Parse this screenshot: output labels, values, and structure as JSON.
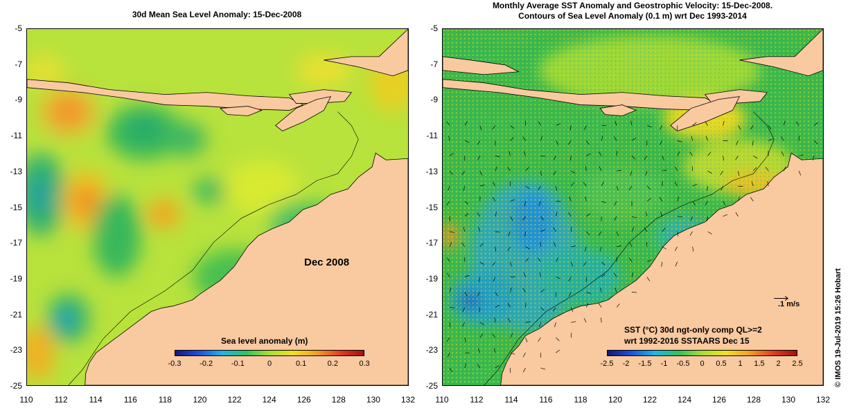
{
  "left_panel": {
    "title": "30d Mean Sea Level Anomaly: 15-Dec-2008",
    "y_ticks": [
      "-5",
      "-7",
      "-9",
      "-11",
      "-13",
      "-15",
      "-17",
      "-19",
      "-21",
      "-23",
      "-25"
    ],
    "x_ticks": [
      "110",
      "112",
      "114",
      "116",
      "118",
      "120",
      "122",
      "124",
      "126",
      "128",
      "130",
      "132"
    ],
    "month_label": "Dec 2008",
    "colorbar": {
      "label": "Sea level anomaly (m)",
      "ticks": [
        "-0.3",
        "-0.2",
        "-0.1",
        "0",
        "0.1",
        "0.2",
        "0.3"
      ]
    }
  },
  "right_panel": {
    "title_line1": "Monthly Average SST Anomaly  and Geostrophic Velocity: 15-Dec-2008.",
    "title_line2": "Contours of Sea Level Anomaly (0.1 m) wrt Dec 1993-2014",
    "y_ticks": [
      "-5",
      "-7",
      "-9",
      "-11",
      "-13",
      "-15",
      "-17",
      "-19",
      "-21",
      "-23",
      "-25"
    ],
    "x_ticks": [
      "110",
      "112",
      "114",
      "116",
      "118",
      "120",
      "122",
      "124",
      "126",
      "128",
      "130",
      "132"
    ],
    "velocity_scale_label": ".1 m/s",
    "colorbar": {
      "label_line1": "SST (°C) 30d ngt-only comp QL>=2",
      "label_line2": "wrt 1992-2016 SSTAARS Dec 15",
      "ticks": [
        "-2.5",
        "-2",
        "-1.5",
        "-1",
        "-0.5",
        "0",
        "0.5",
        "1",
        "1.5",
        "2",
        "2.5"
      ]
    }
  },
  "credit": "© IMOS 19-Jul-2019 15:26 Hobart",
  "colors": {
    "land": "#f9c9a0",
    "sla_background": "#b8e23c",
    "sst_background": "#3cb84a",
    "colorbar_gradient": [
      "#18147a",
      "#2050d8",
      "#20b4e8",
      "#30c060",
      "#a8e030",
      "#f0e020",
      "#f0a020",
      "#e04020",
      "#a01010"
    ]
  }
}
